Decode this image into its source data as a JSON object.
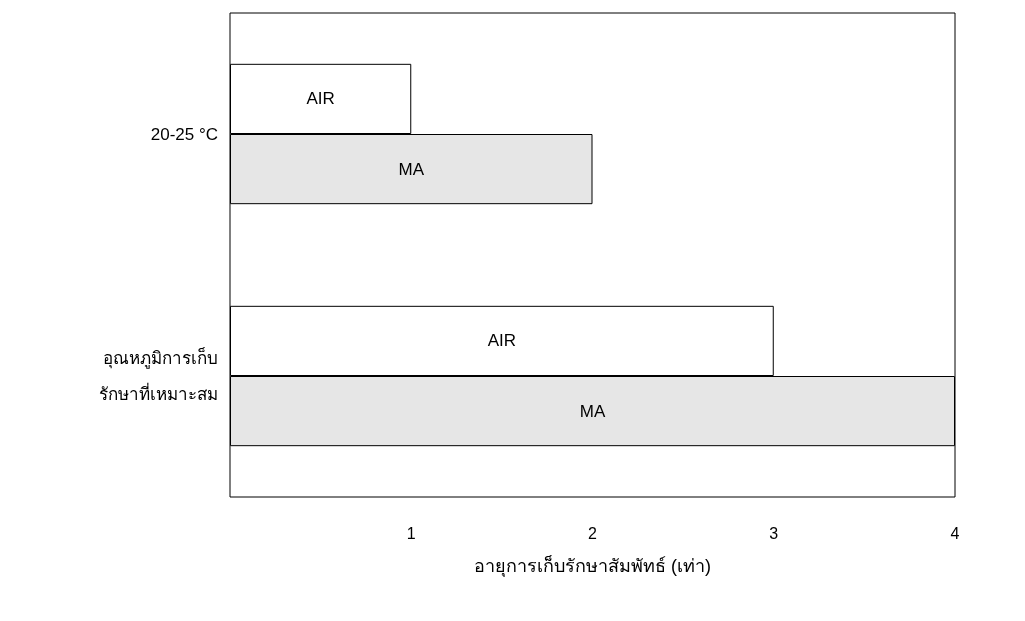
{
  "chart_data": {
    "type": "bar",
    "orientation": "horizontal",
    "xlabel": "อายุการเก็บรักษาสัมพัทธ์ (เท่า)",
    "categories": [
      "20-25 °C",
      "อุณหภูมิการเก็บ\nรักษาที่เหมาะสม"
    ],
    "series": [
      {
        "name": "AIR",
        "color": "#ffffff",
        "values": [
          1,
          3
        ]
      },
      {
        "name": "MA",
        "color": "#e6e6e6",
        "values": [
          2,
          4
        ]
      }
    ],
    "xlim": [
      0,
      4
    ],
    "xticks": [
      1,
      2,
      3,
      4
    ],
    "grid": false,
    "legend": false
  }
}
